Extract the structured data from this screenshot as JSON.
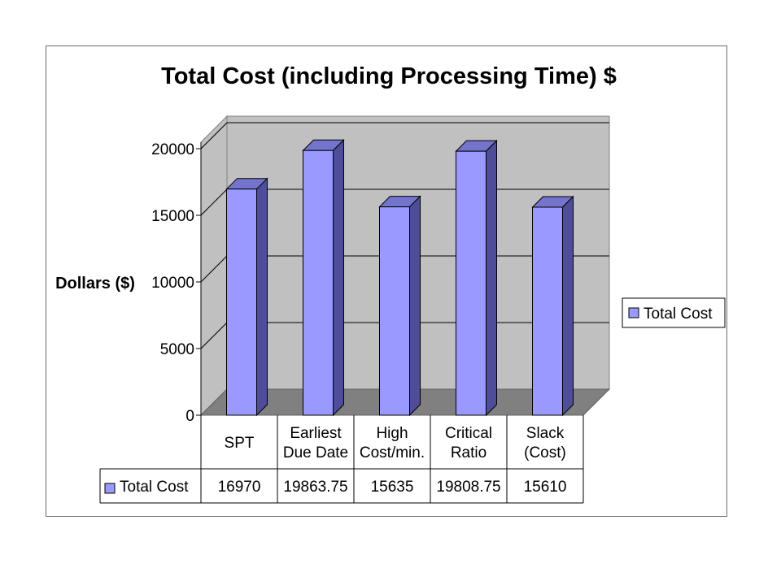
{
  "chart_data": {
    "type": "bar",
    "title": "Total Cost (including Processing Time) $",
    "ylabel": "Dollars ($)",
    "xlabel": "",
    "ylim": [
      0,
      20000
    ],
    "yticks": [
      "0",
      "5000",
      "10000",
      "15000",
      "20000"
    ],
    "categories": [
      [
        "SPT"
      ],
      [
        "Earliest",
        "Due Date"
      ],
      [
        "High",
        "Cost/min."
      ],
      [
        "Critical",
        "Ratio"
      ],
      [
        "Slack",
        "(Cost)"
      ]
    ],
    "series": [
      {
        "name": "Total Cost",
        "values": [
          16970,
          19863.75,
          15635,
          19808.75,
          15610
        ],
        "labels": [
          "16970",
          "19863.75",
          "15635",
          "19808.75",
          "15610"
        ]
      }
    ],
    "grid": true,
    "legend_position": "right",
    "data_table": true,
    "style": "3d-column"
  },
  "colors": {
    "bar_front": "#9999ff",
    "bar_side": "#4d4d99",
    "bar_top": "#7474cc",
    "wall": "#c0c0c0",
    "floor": "#808080",
    "outline": "#000000"
  }
}
